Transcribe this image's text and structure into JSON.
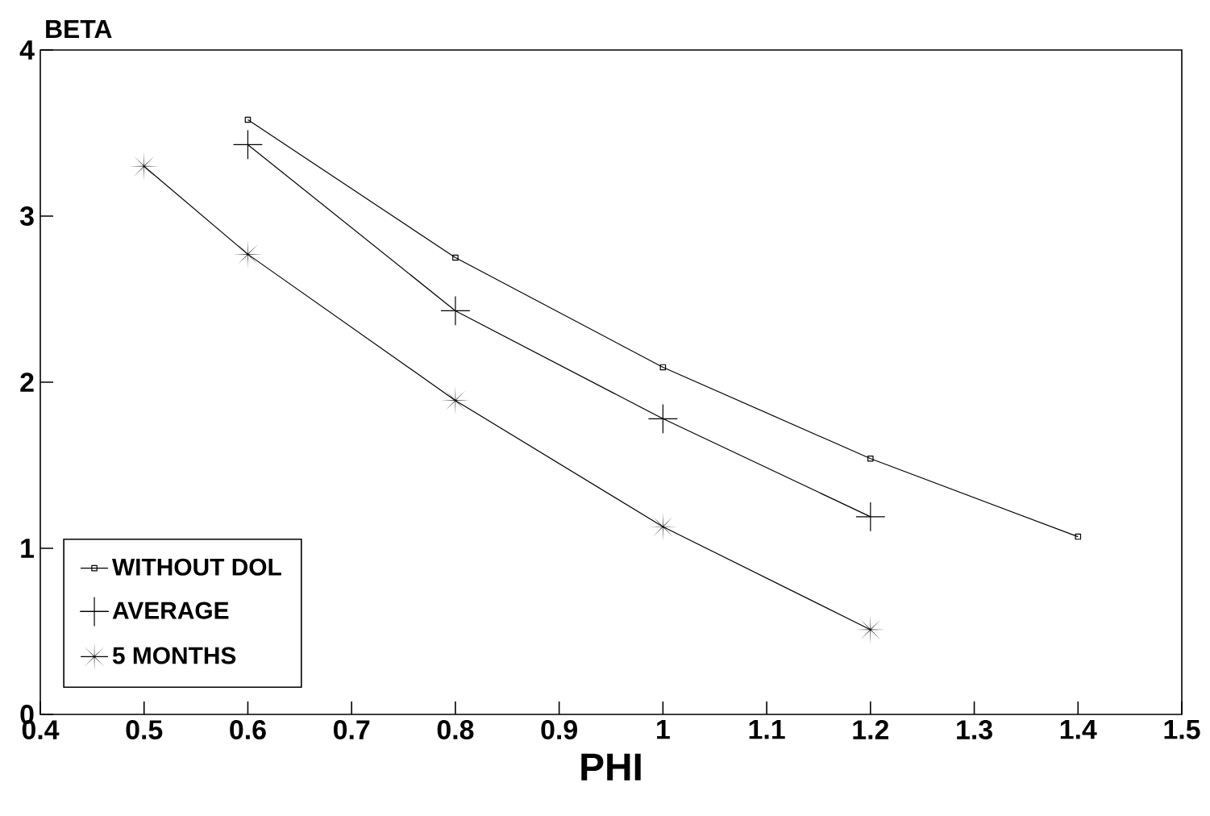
{
  "chart_data": {
    "type": "line",
    "xlabel": "PHI",
    "ylabel": "BETA",
    "xlim": [
      0.4,
      1.5
    ],
    "xticks": [
      0.4,
      0.5,
      0.6,
      0.7,
      0.8,
      0.9,
      1,
      1.1,
      1.2,
      1.3,
      1.4,
      1.5
    ],
    "ylim": [
      0,
      4
    ],
    "yticks": [
      0,
      1,
      2,
      3,
      4
    ],
    "grid": false,
    "legend": "bottom left",
    "series": [
      {
        "name": "WITHOUT DOL",
        "color": "#000000",
        "marker": "square",
        "x": [
          0.6,
          0.8,
          1.0,
          1.2,
          1.4
        ],
        "values": [
          3.58,
          2.75,
          2.09,
          1.54,
          1.07
        ]
      },
      {
        "name": "AVERAGE",
        "color": "#000000",
        "marker": "cross",
        "x": [
          0.6,
          0.8,
          1.0,
          1.2
        ],
        "values": [
          3.43,
          2.43,
          1.78,
          1.19
        ]
      },
      {
        "name": "5 MONTHS",
        "color": "#000000",
        "marker": "star",
        "x": [
          0.5,
          0.6,
          0.8,
          1.0,
          1.2
        ],
        "values": [
          3.3,
          2.77,
          1.89,
          1.13,
          0.51
        ]
      }
    ]
  }
}
